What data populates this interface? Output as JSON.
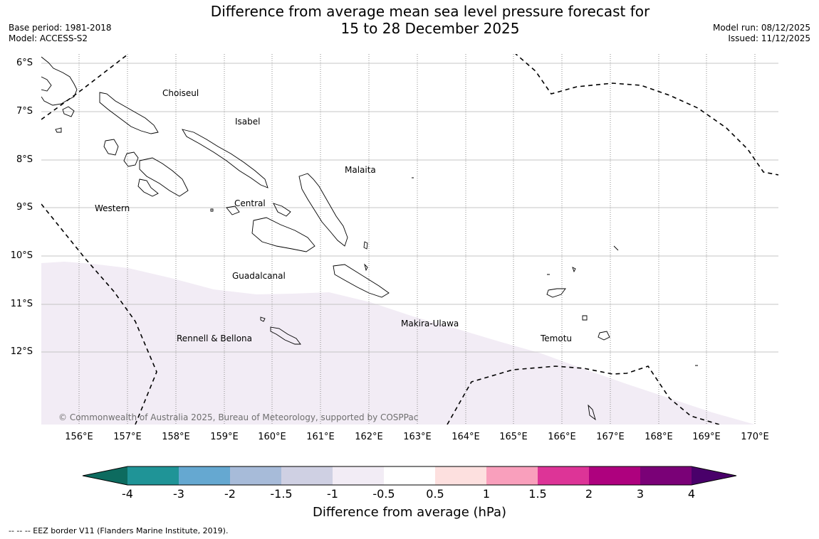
{
  "title": {
    "line1": "Difference from average mean sea level pressure forecast for",
    "line2": "15 to 28 December 2025"
  },
  "meta_left": {
    "base_period": "Base period: 1981-2018",
    "model": "Model: ACCESS-S2"
  },
  "meta_right": {
    "model_run": "Model run: 08/12/2025",
    "issued": "Issued: 11/12/2025"
  },
  "latitude_labels": [
    "6°S",
    "7°S",
    "8°S",
    "9°S",
    "10°S",
    "11°S",
    "12°S"
  ],
  "longitude_labels": [
    "156°E",
    "157°E",
    "158°E",
    "159°E",
    "160°E",
    "161°E",
    "162°E",
    "163°E",
    "164°E",
    "165°E",
    "166°E",
    "167°E",
    "168°E",
    "169°E",
    "170°E"
  ],
  "regions": {
    "choiseul": "Choiseul",
    "isabel": "Isabel",
    "malaita": "Malaita",
    "western": "Western",
    "central": "Central",
    "guadalcanal": "Guadalcanal",
    "makira": "Makira-Ulawa",
    "rennell": "Rennell & Bellona",
    "temotu": "Temotu"
  },
  "copyright": "© Commonwealth of Australia 2025, Bureau of Meteorology, supported by COSPPac",
  "colorbar": {
    "tick_labels": [
      "-4",
      "-3",
      "-2",
      "-1.5",
      "-1",
      "-0.5",
      "0.5",
      "1",
      "1.5",
      "2",
      "3",
      "4"
    ],
    "colors": [
      "#0d6b5f",
      "#1f9497",
      "#65a8d1",
      "#a7bbd9",
      "#cfd0e3",
      "#f2ecf5",
      "#ffffff",
      "#fde0df",
      "#f99fbc",
      "#dd3497",
      "#ae017e",
      "#7a0177",
      "#49006a"
    ],
    "title": "Difference from average (hPa)"
  },
  "eez_note": "--  --  -- EEZ border V11 (Flanders Marine Institute, 2019).",
  "anomaly_region": {
    "category": "-1 to -0.5",
    "color": "#f2ecf5"
  }
}
